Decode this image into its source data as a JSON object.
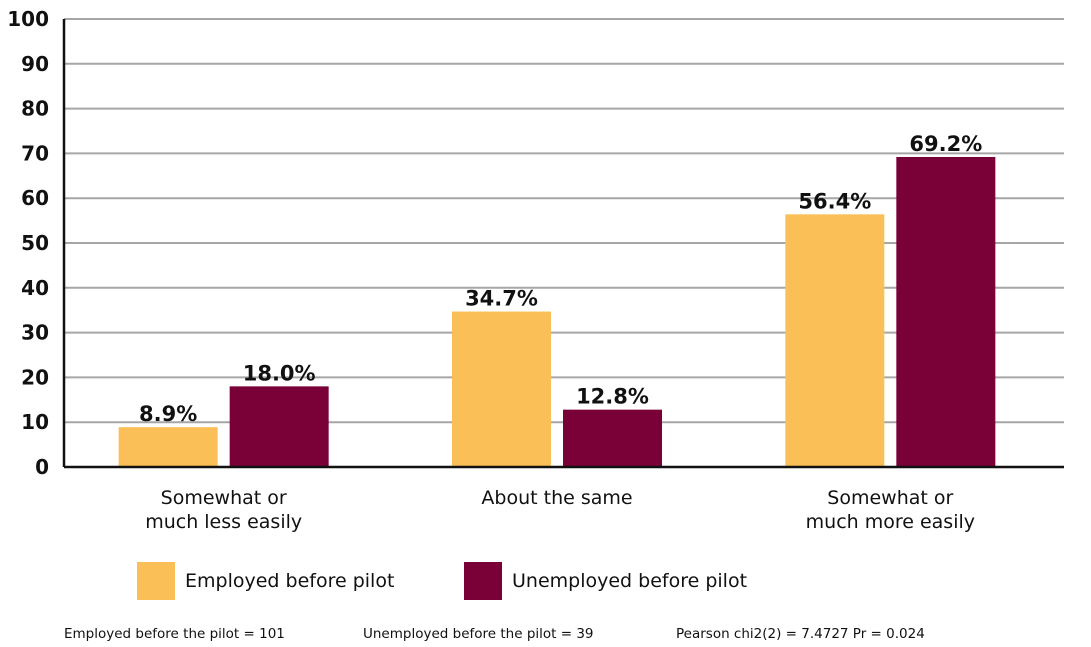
{
  "chart_data": {
    "type": "bar",
    "categories": [
      [
        "Somewhat or",
        "much less easily"
      ],
      [
        "About the same"
      ],
      [
        "Somewhat or",
        "much more easily"
      ]
    ],
    "series": [
      {
        "name": "Employed before pilot",
        "color": "#FBBF57",
        "values": [
          8.9,
          34.7,
          56.4
        ],
        "labels": [
          "8.9%",
          "34.7%",
          "56.4%"
        ]
      },
      {
        "name": "Unemployed before pilot",
        "color": "#7A0038",
        "values": [
          18.0,
          12.8,
          69.2
        ],
        "labels": [
          "18.0%",
          "12.8%",
          "69.2%"
        ]
      }
    ],
    "ylim": [
      0,
      100
    ],
    "yticks": [
      0,
      10,
      20,
      30,
      40,
      50,
      60,
      70,
      80,
      90,
      100
    ],
    "grid": true,
    "legend_position": "bottom"
  },
  "footnote": {
    "employed_n": "Employed before the pilot = 101",
    "unemployed_n": "Unemployed before the pilot = 39",
    "chi2": "Pearson chi2(2) = 7.4727 Pr = 0.024"
  }
}
